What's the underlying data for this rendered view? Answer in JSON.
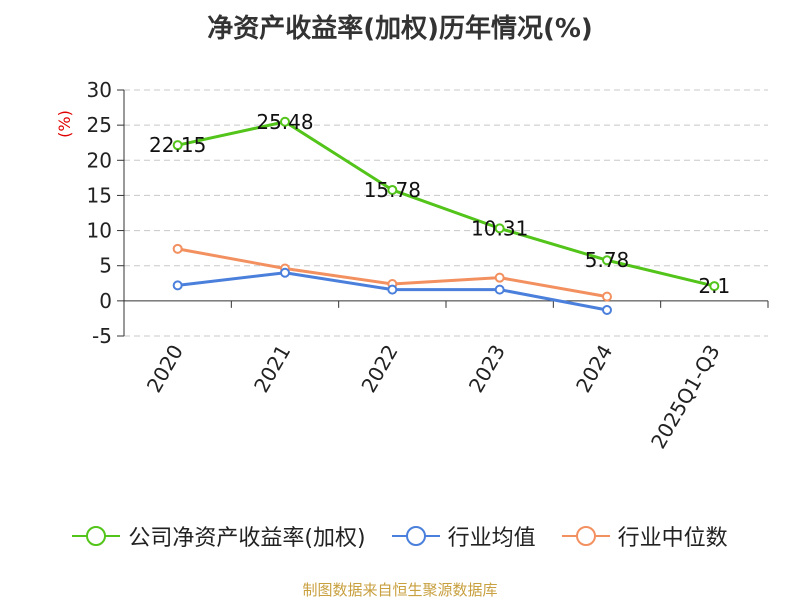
{
  "title": "净资产收益率(加权)历年情况(%)",
  "source": "制图数据来自恒生聚源数据库",
  "colors": {
    "company": "#52c41a",
    "average": "#4a7fdc",
    "median": "#f39060"
  },
  "chart_data": {
    "type": "line",
    "title": "净资产收益率(加权)历年情况(%)",
    "xlabel": "",
    "ylabel": "(%)",
    "ylim": [
      -5,
      30
    ],
    "yticks": [
      30,
      25,
      20,
      15,
      10,
      5,
      0,
      -5
    ],
    "grid": true,
    "legend": "bottom",
    "categories": [
      "2020",
      "2021",
      "2022",
      "2023",
      "2024",
      "2025Q1-Q3"
    ],
    "series": [
      {
        "name": "公司净资产收益率(加权)",
        "values": [
          22.15,
          25.48,
          15.78,
          10.31,
          5.78,
          2.1
        ],
        "labels": [
          "22.15",
          "25.48",
          "15.78",
          "10.31",
          "5.78",
          "2.1"
        ]
      },
      {
        "name": "行业均值",
        "values": [
          2.2,
          4.0,
          1.6,
          1.6,
          -1.3,
          null
        ]
      },
      {
        "name": "行业中位数",
        "values": [
          7.4,
          4.6,
          2.4,
          3.3,
          0.6,
          null
        ]
      }
    ]
  }
}
